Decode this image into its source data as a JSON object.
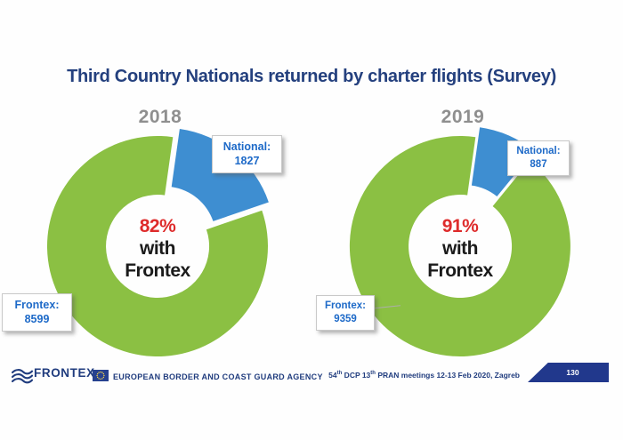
{
  "title": "Third Country Nationals returned by charter flights (Survey)",
  "charts": [
    {
      "year": "2018",
      "center": {
        "percent": "82%",
        "line2": "with",
        "line3": "Frontex"
      },
      "callouts": {
        "national": {
          "label": "National:",
          "value": "1827"
        },
        "frontex": {
          "label": "Frontex:",
          "value": "8599"
        }
      }
    },
    {
      "year": "2019",
      "center": {
        "percent": "91%",
        "line2": "with",
        "line3": "Frontex"
      },
      "callouts": {
        "national": {
          "label": "National:",
          "value": "887"
        },
        "frontex": {
          "label": "Frontex:",
          "value": "9359"
        }
      }
    }
  ],
  "chart_data": [
    {
      "type": "pie",
      "subtype": "donut",
      "title": "2018",
      "labels": [
        "Frontex",
        "National"
      ],
      "values": [
        8599,
        1827
      ],
      "percents": [
        82,
        18
      ],
      "colors": [
        "#8BC043",
        "#3E8ED1"
      ],
      "exploded_slice": "National",
      "center_annotation": "82% with Frontex",
      "legend_position": "none (callout labels on slices)"
    },
    {
      "type": "pie",
      "subtype": "donut",
      "title": "2019",
      "labels": [
        "Frontex",
        "National"
      ],
      "values": [
        9359,
        887
      ],
      "percents": [
        91,
        9
      ],
      "colors": [
        "#8BC043",
        "#3E8ED1"
      ],
      "exploded_slice": "National",
      "center_annotation": "91% with Frontex",
      "legend_position": "none (callout labels on slices)"
    }
  ],
  "footer": {
    "logo_text": "FRONTEX",
    "agency_text": "EUROPEAN BORDER AND COAST GUARD AGENCY",
    "meeting": {
      "p1": "54",
      "sup1": "th",
      "p2": " DCP 13",
      "sup2": "th",
      "p3": " PRAN meetings 12-13 Feb 2020, Zagreb"
    },
    "page_number": "130"
  },
  "colors": {
    "title_navy": "#24407E",
    "footer_navy": "#203C7E",
    "tab_navy": "#21388C",
    "donut_green": "#8BC043",
    "donut_blue": "#3E8ED1",
    "callout_blue": "#1E6AC8",
    "percent_red": "#DE2B2B",
    "year_gray": "#8F8F8F"
  }
}
